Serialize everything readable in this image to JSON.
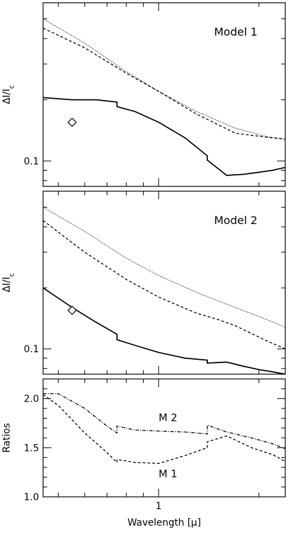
{
  "chart_data": [
    {
      "type": "line",
      "title": "Model 1",
      "xlabel": "",
      "ylabel": "ΔI/I_c",
      "yscale": "log",
      "xscale": "log",
      "xlim": [
        0.45,
        2.4
      ],
      "ylim": [
        0.075,
        0.6
      ],
      "xticks": [],
      "yticks": [
        {
          "value": 0.1,
          "label": "0.1"
        }
      ],
      "series": [
        {
          "style": "dotted",
          "x": [
            0.45,
            0.6,
            0.8,
            1.0,
            1.3,
            1.7,
            2.1,
            2.4
          ],
          "y": [
            0.5,
            0.38,
            0.275,
            0.22,
            0.175,
            0.145,
            0.132,
            0.128
          ]
        },
        {
          "style": "dashed",
          "x": [
            0.45,
            0.6,
            0.8,
            1.0,
            1.3,
            1.7,
            2.1,
            2.4
          ],
          "y": [
            0.45,
            0.36,
            0.27,
            0.22,
            0.17,
            0.137,
            0.131,
            0.128
          ]
        },
        {
          "style": "solid",
          "x": [
            0.45,
            0.55,
            0.65,
            0.75,
            0.75,
            0.85,
            1.0,
            1.2,
            1.4,
            1.4,
            1.6,
            1.8,
            2.0,
            2.2,
            2.4
          ],
          "y": [
            0.205,
            0.2,
            0.2,
            0.195,
            0.185,
            0.175,
            0.155,
            0.13,
            0.106,
            0.101,
            0.085,
            0.086,
            0.088,
            0.09,
            0.093
          ]
        }
      ],
      "markers": [
        {
          "shape": "diamond",
          "x": 0.55,
          "y": 0.155
        }
      ]
    },
    {
      "type": "line",
      "title": "Model 2",
      "xlabel": "",
      "ylabel": "ΔI/I_c",
      "yscale": "log",
      "xscale": "log",
      "xlim": [
        0.45,
        2.4
      ],
      "ylim": [
        0.075,
        0.6
      ],
      "xticks": [],
      "yticks": [
        {
          "value": 0.1,
          "label": "0.1"
        }
      ],
      "series": [
        {
          "style": "dotted",
          "x": [
            0.45,
            0.6,
            0.8,
            1.0,
            1.3,
            1.7,
            2.1,
            2.4
          ],
          "y": [
            0.5,
            0.38,
            0.28,
            0.23,
            0.19,
            0.16,
            0.14,
            0.128
          ]
        },
        {
          "style": "dashed",
          "x": [
            0.45,
            0.6,
            0.8,
            1.0,
            1.3,
            1.5,
            1.7,
            2.1,
            2.4
          ],
          "y": [
            0.43,
            0.3,
            0.22,
            0.18,
            0.15,
            0.14,
            0.13,
            0.11,
            0.1
          ]
        },
        {
          "style": "solid",
          "x": [
            0.45,
            0.55,
            0.65,
            0.75,
            0.75,
            0.85,
            1.0,
            1.2,
            1.4,
            1.4,
            1.6,
            1.8,
            2.0,
            2.2,
            2.4
          ],
          "y": [
            0.2,
            0.16,
            0.135,
            0.118,
            0.111,
            0.104,
            0.096,
            0.09,
            0.088,
            0.085,
            0.086,
            0.082,
            0.079,
            0.077,
            0.075
          ]
        }
      ],
      "markers": [
        {
          "shape": "diamond",
          "x": 0.55,
          "y": 0.155
        }
      ]
    },
    {
      "type": "line",
      "title": "",
      "xlabel": "Wavelength [μ]",
      "ylabel": "Ratios",
      "xscale": "log",
      "xlim": [
        0.45,
        2.4
      ],
      "ylim": [
        1.0,
        2.2
      ],
      "xticks": [
        {
          "value": 1,
          "label": "1"
        }
      ],
      "yticks": [
        {
          "value": 1.0,
          "label": "1.0"
        },
        {
          "value": 1.5,
          "label": "1.5"
        },
        {
          "value": 2.0,
          "label": "2.0"
        }
      ],
      "series": [
        {
          "name": "M 2",
          "style": "dashdot",
          "x": [
            0.45,
            0.5,
            0.6,
            0.7,
            0.75,
            0.75,
            0.85,
            1.0,
            1.2,
            1.4,
            1.4,
            1.6,
            1.9,
            2.2,
            2.4
          ],
          "y": [
            2.05,
            2.05,
            1.9,
            1.72,
            1.65,
            1.72,
            1.68,
            1.67,
            1.66,
            1.64,
            1.73,
            1.66,
            1.6,
            1.54,
            1.49
          ]
        },
        {
          "name": "M 1",
          "style": "dashed",
          "x": [
            0.45,
            0.5,
            0.6,
            0.7,
            0.75,
            0.75,
            0.85,
            1.0,
            1.2,
            1.4,
            1.4,
            1.6,
            1.9,
            2.2,
            2.4
          ],
          "y": [
            2.04,
            1.93,
            1.65,
            1.45,
            1.35,
            1.38,
            1.35,
            1.34,
            1.42,
            1.5,
            1.56,
            1.62,
            1.5,
            1.43,
            1.36
          ]
        }
      ],
      "annotations": [
        {
          "text": "M 2",
          "x": 1.0,
          "y": 1.77
        },
        {
          "text": "M 1",
          "x": 1.0,
          "y": 1.2
        }
      ]
    }
  ]
}
